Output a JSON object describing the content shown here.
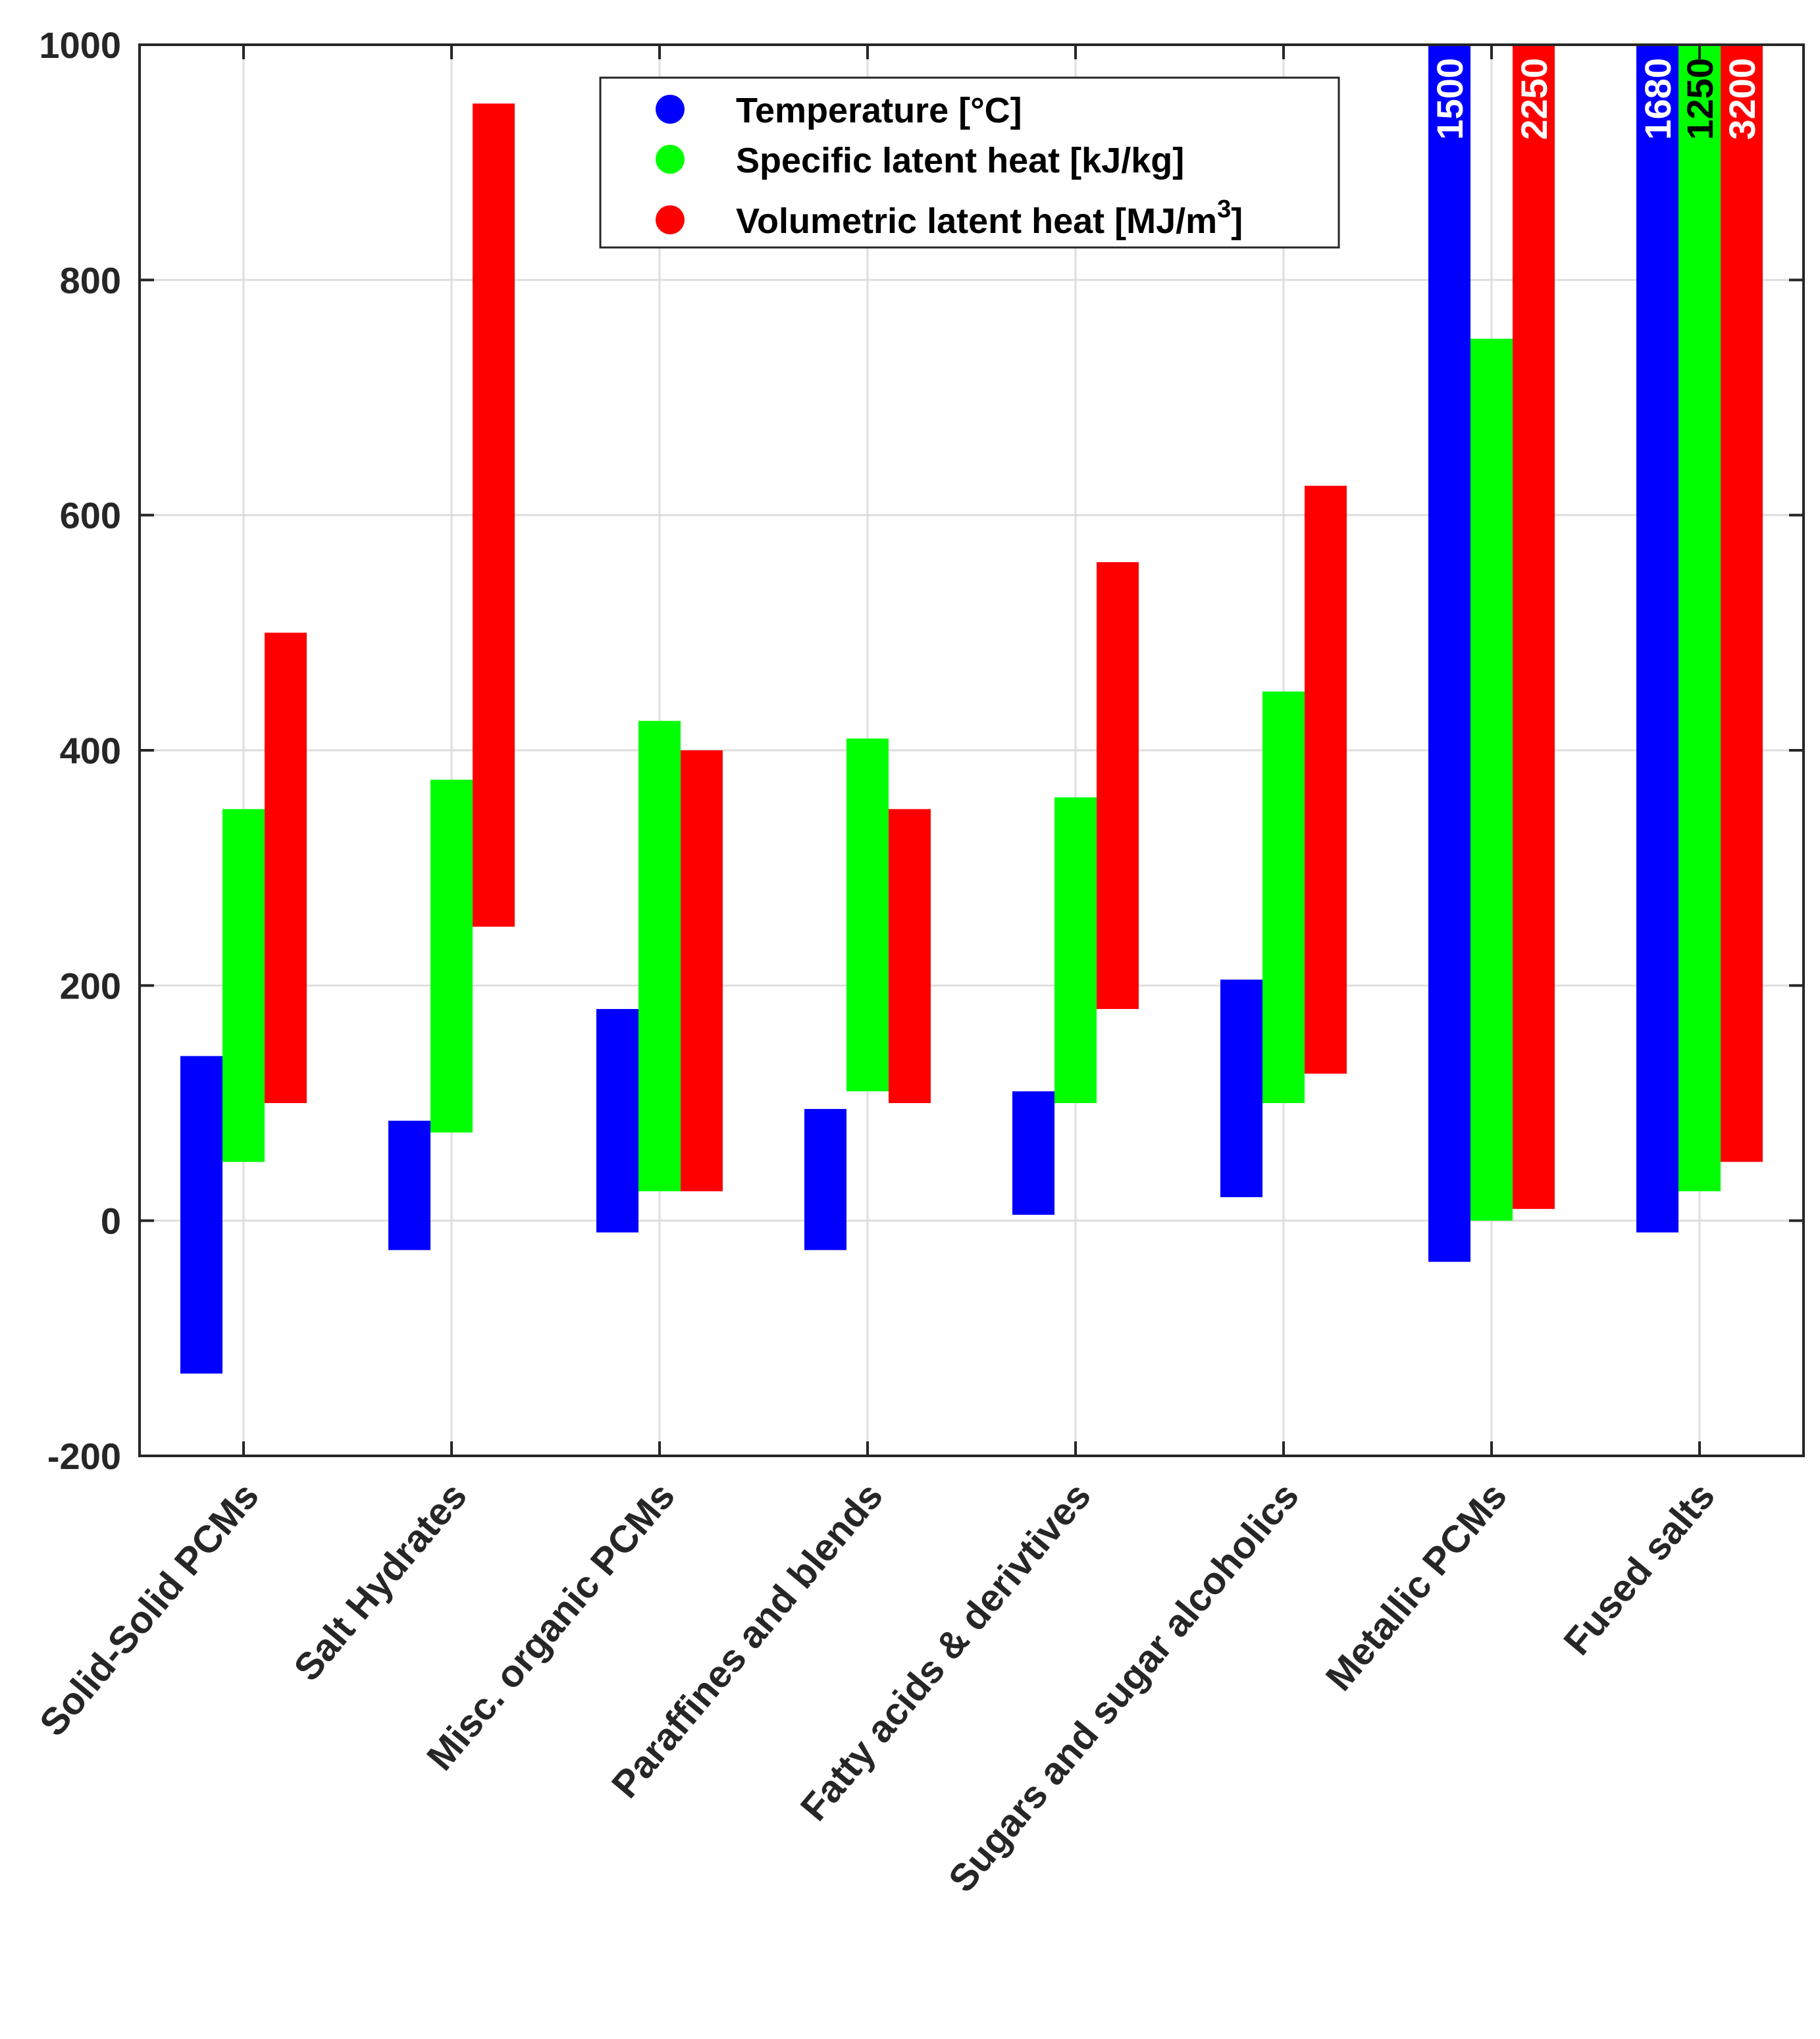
{
  "chart_data": {
    "type": "bar",
    "subtype": "floating-range",
    "title": "",
    "xlabel": "",
    "ylabel": "",
    "ylim": [
      -200,
      1000
    ],
    "yticks": [
      -200,
      0,
      200,
      400,
      600,
      800,
      1000
    ],
    "grid": true,
    "legend_position": "top-center",
    "categories": [
      "Solid-Solid PCMs",
      "Salt Hydrates",
      "Misc. organic PCMs",
      "Paraffines and blends",
      "Fatty acids & derivtives",
      "Sugars and sugar alcoholics",
      "Metallic PCMs",
      "Fused salts"
    ],
    "series": [
      {
        "name": "Temperature [°C]",
        "color": "#0000ff",
        "label_color": "#ffffff",
        "ranges": [
          [
            -130,
            140
          ],
          [
            -25,
            85
          ],
          [
            -10,
            180
          ],
          [
            -25,
            95
          ],
          [
            5,
            110
          ],
          [
            20,
            205
          ],
          [
            -35,
            1500
          ],
          [
            -10,
            1680
          ]
        ]
      },
      {
        "name": "Specific latent heat [kJ/kg]",
        "color": "#00ff00",
        "label_color": "#000000",
        "ranges": [
          [
            50,
            350
          ],
          [
            75,
            375
          ],
          [
            25,
            425
          ],
          [
            110,
            410
          ],
          [
            100,
            360
          ],
          [
            100,
            450
          ],
          [
            0,
            750
          ],
          [
            25,
            1250
          ]
        ]
      },
      {
        "name": "Volumetric latent heat [MJ/m3]",
        "color": "#ff0000",
        "label_color": "#ffffff",
        "ranges": [
          [
            100,
            500
          ],
          [
            250,
            950
          ],
          [
            25,
            400
          ],
          [
            100,
            350
          ],
          [
            180,
            560
          ],
          [
            125,
            625
          ],
          [
            10,
            2250
          ],
          [
            50,
            3200
          ]
        ]
      }
    ],
    "legend": {
      "entries": [
        {
          "text": "Temperature [°C]"
        },
        {
          "text": "Specific latent heat [kJ/kg]"
        },
        {
          "text": "Volumetric latent heat [MJ/m",
          "superscript": "3",
          "suffix": "]"
        }
      ]
    }
  }
}
